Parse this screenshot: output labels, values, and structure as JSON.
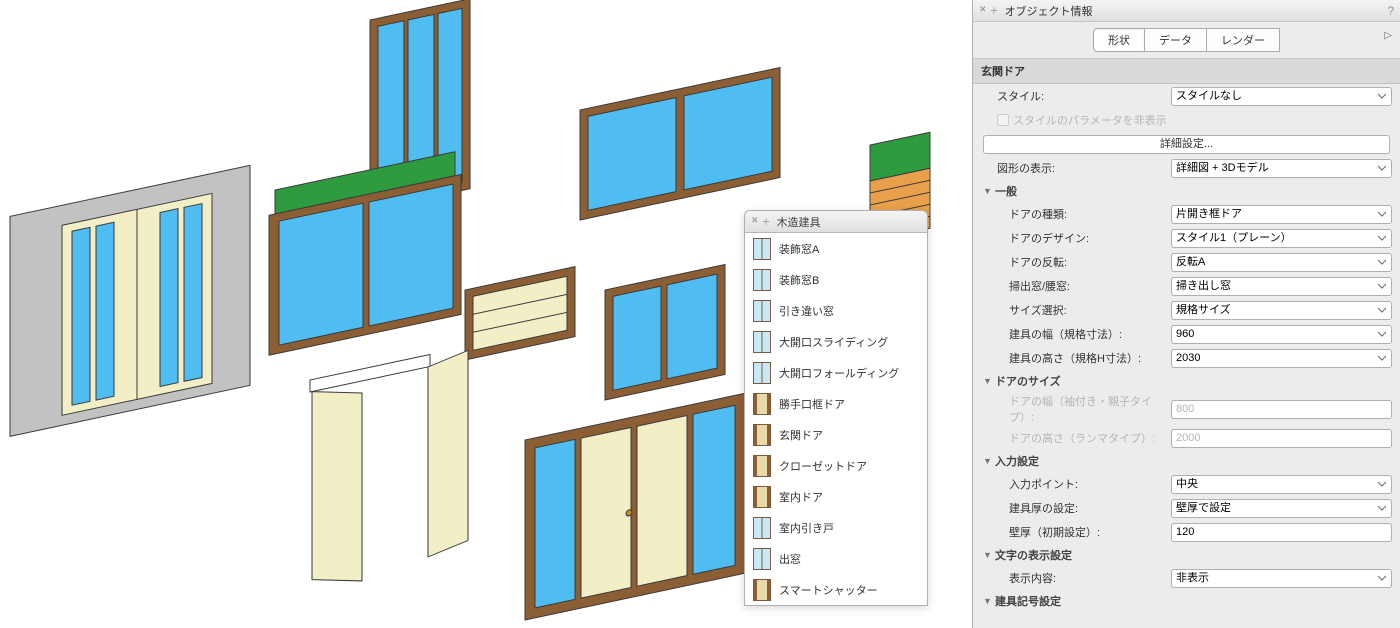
{
  "viewport": {
    "bg": "#ffffff",
    "wood": "#8b5e34",
    "wood_light": "#b98b57",
    "glass": "#4fbdf2",
    "cream": "#f2efc7",
    "green": "#2e9b3e",
    "gray": "#c2c2c2",
    "outline": "#3a3a3a"
  },
  "palette": {
    "title": "木造建具",
    "items": [
      {
        "label": "装飾窓A",
        "icon": "split"
      },
      {
        "label": "装飾窓B",
        "icon": "split"
      },
      {
        "label": "引き違い窓",
        "icon": "split"
      },
      {
        "label": "大開口スライディング",
        "icon": "split"
      },
      {
        "label": "大開口フォールディング",
        "icon": "split"
      },
      {
        "label": "勝手口框ドア",
        "icon": "door"
      },
      {
        "label": "玄関ドア",
        "icon": "door"
      },
      {
        "label": "クローゼットドア",
        "icon": "door"
      },
      {
        "label": "室内ドア",
        "icon": "door"
      },
      {
        "label": "室内引き戸",
        "icon": "split"
      },
      {
        "label": "出窓",
        "icon": "split"
      },
      {
        "label": "スマートシャッター",
        "icon": "door"
      }
    ]
  },
  "oi": {
    "panel_title": "オブジェクト情報",
    "tabs": {
      "shape": "形状",
      "data": "データ",
      "render": "レンダー"
    },
    "object_name": "玄関ドア",
    "style_label": "スタイル:",
    "style_value": "スタイルなし",
    "hide_params_label": "スタイルのパラメータを非表示",
    "detail_btn": "詳細設定...",
    "display_label": "図形の表示:",
    "display_value": "詳細図 + 3Dモデル",
    "groups": {
      "general": "一般",
      "door_size": "ドアのサイズ",
      "input": "入力設定",
      "text_disp": "文字の表示設定",
      "symbol": "建具記号設定"
    },
    "fields": {
      "door_type": {
        "label": "ドアの種類:",
        "value": "片開き框ドア"
      },
      "door_design": {
        "label": "ドアのデザイン:",
        "value": "スタイル1（プレーン）"
      },
      "door_flip": {
        "label": "ドアの反転:",
        "value": "反転A"
      },
      "sweep": {
        "label": "掃出窓/腰窓:",
        "value": "掃き出し窓"
      },
      "size_sel": {
        "label": "サイズ選択:",
        "value": "規格サイズ"
      },
      "width": {
        "label": "建具の幅（規格寸法）:",
        "value": "960"
      },
      "height": {
        "label": "建具の高さ（規格H寸法）:",
        "value": "2030"
      },
      "door_w": {
        "label": "ドアの幅（袖付き・親子タイプ）:",
        "value": "800"
      },
      "door_h": {
        "label": "ドアの高さ（ランマタイプ）:",
        "value": "2000"
      },
      "input_pt": {
        "label": "入力ポイント:",
        "value": "中央"
      },
      "thick_set": {
        "label": "建具厚の設定:",
        "value": "壁厚で設定"
      },
      "thick": {
        "label": "壁厚（初期設定）:",
        "value": "120"
      },
      "disp_content": {
        "label": "表示内容:",
        "value": "非表示"
      }
    }
  }
}
